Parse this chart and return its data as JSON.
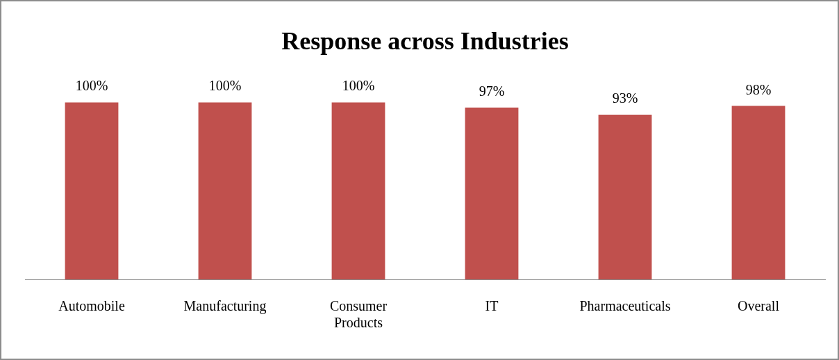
{
  "chart_data": {
    "type": "bar",
    "title": "Response across Industries",
    "categories": [
      "Automobile",
      "Manufacturing",
      "Consumer Products",
      "IT",
      "Pharmaceuticals",
      "Overall"
    ],
    "values": [
      100,
      100,
      100,
      97,
      93,
      98
    ],
    "value_labels": [
      "100%",
      "100%",
      "100%",
      "97%",
      "93%",
      "98%"
    ],
    "color": "#c0504d",
    "tick_labels": "x",
    "grid": false,
    "legend": false
  }
}
